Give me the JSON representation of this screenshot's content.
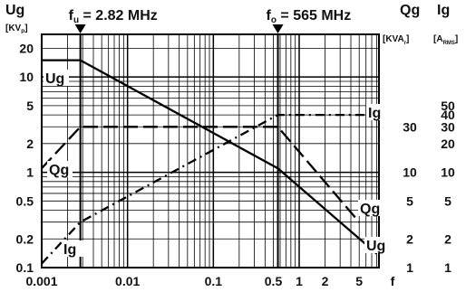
{
  "chart_data": {
    "type": "line",
    "x_scale": "log",
    "y_scale": "log",
    "xlim": [
      0.001,
      8.5
    ],
    "ylim": [
      0.1,
      28
    ],
    "grid": true,
    "left_axis": {
      "title": "Ug",
      "unit": "[KVp]",
      "ticks": [
        {
          "value": 20,
          "label": "20"
        },
        {
          "value": 10,
          "label": "10"
        },
        {
          "value": 5,
          "label": "5"
        },
        {
          "value": 2,
          "label": "2"
        },
        {
          "value": 1,
          "label": "1"
        },
        {
          "value": 0.5,
          "label": "0.5"
        },
        {
          "value": 0.2,
          "label": "0.2"
        },
        {
          "value": 0.1,
          "label": "0.1"
        }
      ]
    },
    "right_axes": [
      {
        "title": "Qg",
        "unit": "[KVAr]",
        "ticks": [
          {
            "value": 30,
            "y": 3,
            "label": "30"
          },
          {
            "value": 10,
            "y": 1,
            "label": "10"
          },
          {
            "value": 5,
            "y": 0.5,
            "label": "5"
          },
          {
            "value": 2,
            "y": 0.2,
            "label": "2"
          },
          {
            "value": 1,
            "y": 0.1,
            "label": "1"
          }
        ]
      },
      {
        "title": "Ig",
        "unit": "[ARMS]",
        "ticks": [
          {
            "value": 50,
            "y": 5,
            "label": "50"
          },
          {
            "value": 40,
            "y": 4,
            "label": "40"
          },
          {
            "value": 30,
            "y": 3,
            "label": "30"
          },
          {
            "value": 20,
            "y": 2,
            "label": "20"
          },
          {
            "value": 10,
            "y": 1,
            "label": "10"
          },
          {
            "value": 5,
            "y": 0.5,
            "label": "5"
          },
          {
            "value": 2,
            "y": 0.2,
            "label": "2"
          },
          {
            "value": 1,
            "y": 0.1,
            "label": "1"
          }
        ]
      }
    ],
    "x_axis": {
      "label": "f",
      "ticks": [
        {
          "value": 0.001,
          "label": "0.001"
        },
        {
          "value": 0.01,
          "label": "0.01"
        },
        {
          "value": 0.1,
          "label": "0.1"
        },
        {
          "value": 0.5,
          "label": "0.5"
        },
        {
          "value": 1,
          "label": "1"
        },
        {
          "value": 2,
          "label": "2"
        },
        {
          "value": 5,
          "label": "5"
        }
      ]
    },
    "markers": [
      {
        "x": 0.00282,
        "label": "fu = 2.82 MHz"
      },
      {
        "x": 0.565,
        "label": "fo = 565 MHz"
      }
    ],
    "series": [
      {
        "name": "Ug",
        "style": "solid",
        "points": [
          [
            0.001,
            15
          ],
          [
            0.00282,
            15
          ],
          [
            0.565,
            1.1
          ],
          [
            8,
            0.14
          ]
        ],
        "labels": [
          "Ug",
          "Ug"
        ]
      },
      {
        "name": "Qg",
        "style": "dashed",
        "points": [
          [
            0.001,
            1.1
          ],
          [
            0.00282,
            3
          ],
          [
            0.565,
            3
          ],
          [
            5,
            0.3
          ]
        ],
        "labels": [
          "Qg",
          "Qg"
        ]
      },
      {
        "name": "Ig",
        "style": "dashdot",
        "points": [
          [
            0.001,
            0.11
          ],
          [
            0.00282,
            0.3
          ],
          [
            0.565,
            4
          ],
          [
            8,
            4
          ]
        ],
        "labels": [
          "Ig",
          "Ig"
        ]
      }
    ]
  }
}
